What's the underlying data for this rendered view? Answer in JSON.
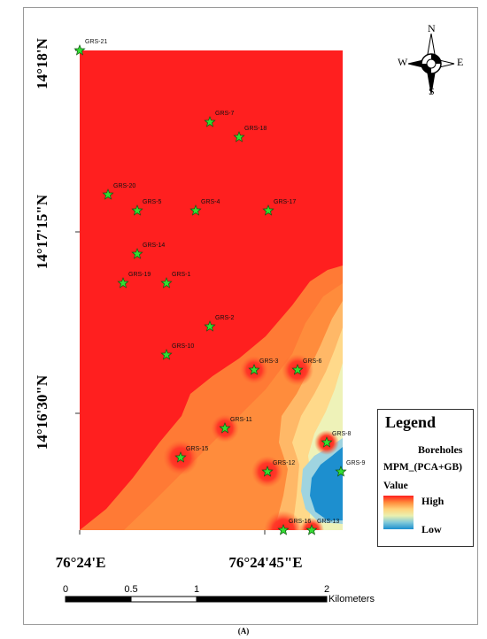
{
  "map": {
    "lat_labels": [
      "14°18'N",
      "14°17'15\"N",
      "14°16'30\"N"
    ],
    "lon_labels": [
      "76°24'E",
      "76°24'45\"E"
    ],
    "boreholes": [
      {
        "id": "GRS-21"
      },
      {
        "id": "GRS-7"
      },
      {
        "id": "GRS-18"
      },
      {
        "id": "GRS-20"
      },
      {
        "id": "GRS-5"
      },
      {
        "id": "GRS-4"
      },
      {
        "id": "GRS-17"
      },
      {
        "id": "GRS-14"
      },
      {
        "id": "GRS-19"
      },
      {
        "id": "GRS-1"
      },
      {
        "id": "GRS-2"
      },
      {
        "id": "GRS-10"
      },
      {
        "id": "GRS-3"
      },
      {
        "id": "GRS-6"
      },
      {
        "id": "GRS-11"
      },
      {
        "id": "GRS-8"
      },
      {
        "id": "GRS-15"
      },
      {
        "id": "GRS-12"
      },
      {
        "id": "GRS-9"
      },
      {
        "id": "GRS-16"
      },
      {
        "id": "GRS-13"
      }
    ],
    "colors": {
      "high": "#ff1f1f",
      "orange": "#ff8a3a",
      "yellow": "#ffd27a",
      "pale": "#e9f0b0",
      "low": "#1d8fcf",
      "marker": "#33dd33"
    }
  },
  "legend": {
    "title": "Legend",
    "boreholes_label": "Boreholes",
    "layer_name": "MPM_(PCA+GB)",
    "value_label": "Value",
    "high_label": "High",
    "low_label": "Low"
  },
  "compass": {
    "n": "N",
    "s": "S",
    "e": "E",
    "w": "W"
  },
  "scale_bar": {
    "labels": [
      "0",
      "0.5",
      "1",
      "2"
    ],
    "unit": "Kilometers"
  },
  "caption": "(A)"
}
